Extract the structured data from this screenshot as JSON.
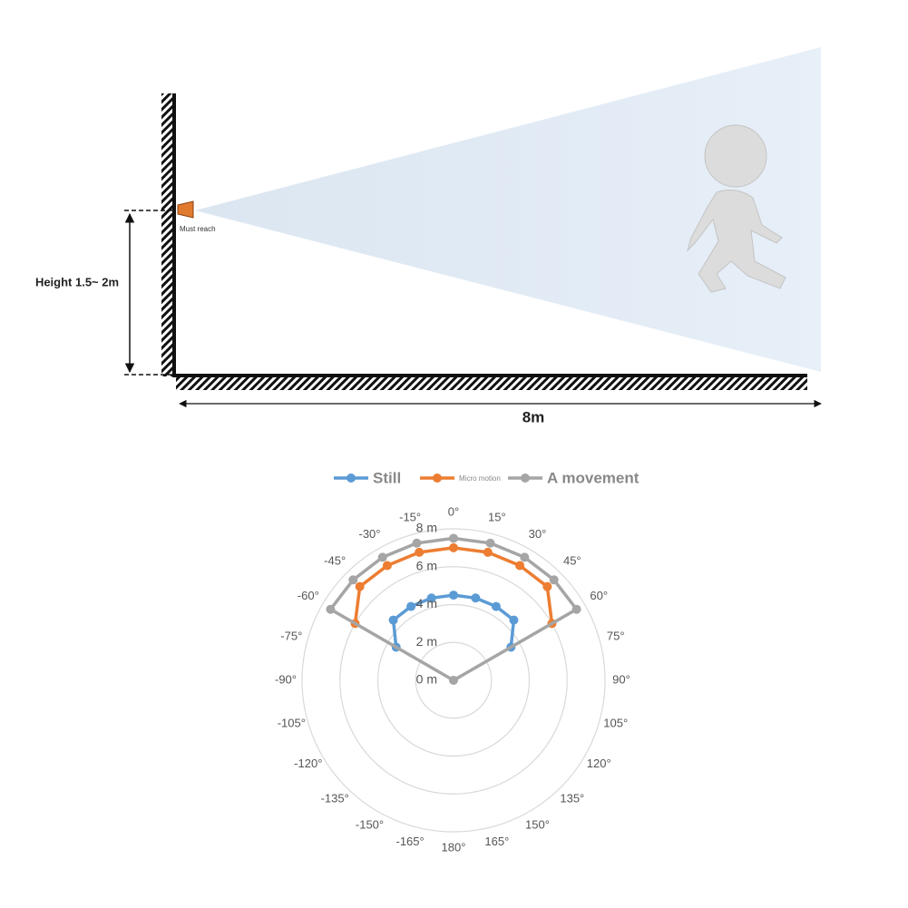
{
  "diagram": {
    "sensor_label": "Must reach",
    "height_label": "Height 1.5~ 2m",
    "distance_label": "8m"
  },
  "chart_data": {
    "type": "radar",
    "angles": [
      -60,
      -45,
      -30,
      -15,
      0,
      15,
      30,
      45,
      60
    ],
    "series": [
      {
        "name": "Still",
        "color": "#5b9bd5",
        "values": [
          3.5,
          4.5,
          4.5,
          4.5,
          4.5,
          4.5,
          4.5,
          4.5,
          3.5
        ]
      },
      {
        "name": "Micro motion",
        "color": "#ed7d31",
        "values": [
          6,
          7,
          7,
          7,
          7,
          7,
          7,
          7,
          6
        ]
      },
      {
        "name": "A movement",
        "color": "#a5a5a5",
        "values": [
          7.5,
          7.5,
          7.5,
          7.5,
          7.5,
          7.5,
          7.5,
          7.5,
          7.5
        ]
      }
    ],
    "rlim": [
      0,
      8
    ],
    "rticks": [
      {
        "value": 0,
        "label": "0 m"
      },
      {
        "value": 2,
        "label": "2 m"
      },
      {
        "value": 4,
        "label": "4 m"
      },
      {
        "value": 6,
        "label": "6 m"
      },
      {
        "value": 8,
        "label": "8 m"
      }
    ],
    "thetaticks": [
      {
        "value": 0,
        "label": "0°"
      },
      {
        "value": 15,
        "label": "15°"
      },
      {
        "value": 30,
        "label": "30°"
      },
      {
        "value": 45,
        "label": "45°"
      },
      {
        "value": 60,
        "label": "60°"
      },
      {
        "value": 75,
        "label": "75°"
      },
      {
        "value": 90,
        "label": "90°"
      },
      {
        "value": 105,
        "label": "105°"
      },
      {
        "value": 120,
        "label": "120°"
      },
      {
        "value": 135,
        "label": "135°"
      },
      {
        "value": 150,
        "label": "150°"
      },
      {
        "value": 165,
        "label": "165°"
      },
      {
        "value": 180,
        "label": "180°"
      },
      {
        "value": -165,
        "label": "-165°"
      },
      {
        "value": -150,
        "label": "-150°"
      },
      {
        "value": -135,
        "label": "-135°"
      },
      {
        "value": -120,
        "label": "-120°"
      },
      {
        "value": -105,
        "label": "-105°"
      },
      {
        "value": -90,
        "label": "-90°"
      },
      {
        "value": -75,
        "label": "-75°"
      },
      {
        "value": -60,
        "label": "-60°"
      },
      {
        "value": -45,
        "label": "-45°"
      },
      {
        "value": -30,
        "label": "-30°"
      },
      {
        "value": -15,
        "label": "-15°"
      }
    ]
  }
}
